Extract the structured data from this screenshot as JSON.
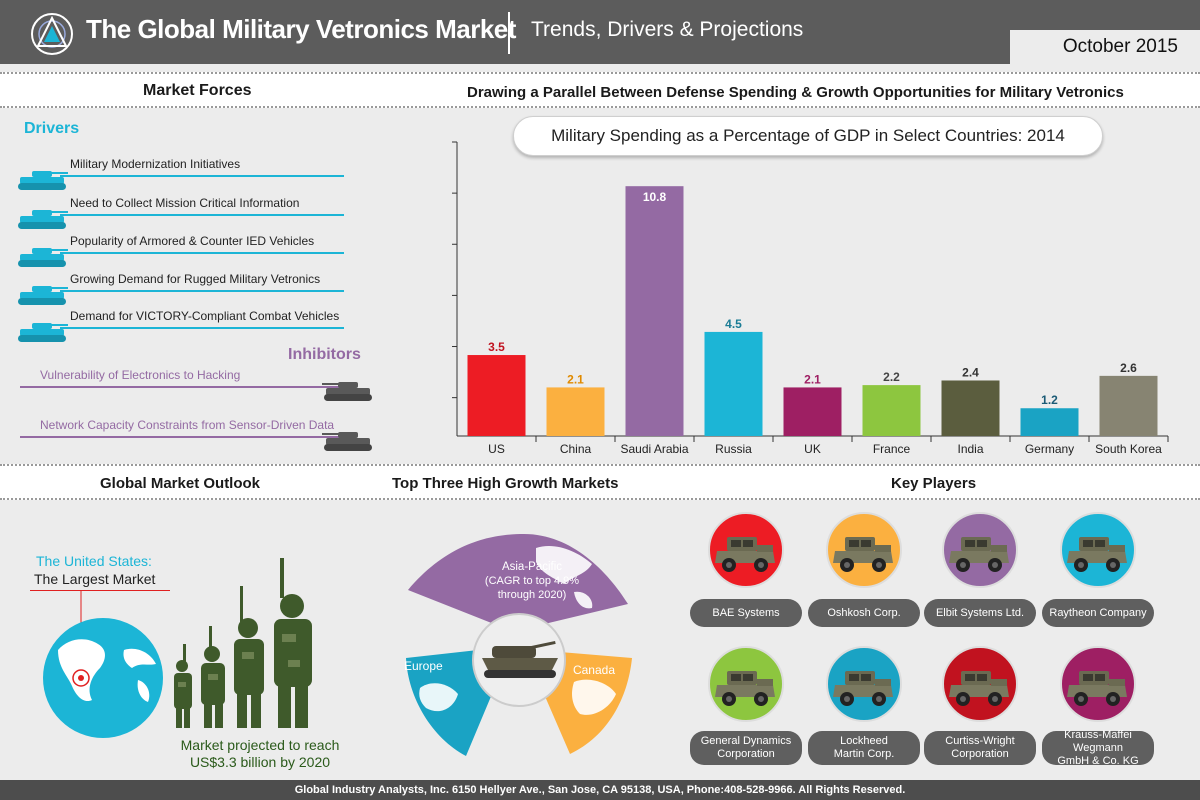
{
  "header": {
    "title": "The Global Military Vetronics Market",
    "subtitle": "Trends, Drivers & Projections",
    "date": "October 2015"
  },
  "sections": {
    "market_forces": "Market Forces",
    "parallel": "Drawing a Parallel Between Defense Spending & Growth Opportunities for Military Vetronics",
    "outlook": "Global Market Outlook",
    "top_three": "Top Three High Growth Markets",
    "key_players": "Key Players"
  },
  "market_forces": {
    "drivers_title": "Drivers",
    "drivers": [
      "Military Modernization Initiatives",
      "Need to Collect Mission Critical Information",
      "Popularity of Armored & Counter IED Vehicles",
      "Growing Demand for Rugged Military Vetronics",
      "Demand for VICTORY-Compliant Combat Vehicles"
    ],
    "inhibitors_title": "Inhibitors",
    "inhibitors": [
      "Vulnerability of Electronics to Hacking",
      "Network Capacity Constraints from Sensor-Driven Data"
    ]
  },
  "chart_data": {
    "type": "bar",
    "title": "Military Spending as a Percentage of GDP in Select Countries: 2014",
    "categories": [
      "US",
      "China",
      "Saudi Arabia",
      "Russia",
      "UK",
      "France",
      "India",
      "Germany",
      "South Korea"
    ],
    "values": [
      3.5,
      2.1,
      10.8,
      4.5,
      2.1,
      2.2,
      2.4,
      1.2,
      2.6
    ],
    "colors": [
      "#ed1c24",
      "#fbb040",
      "#946aa3",
      "#1cb5d6",
      "#9e1f63",
      "#8dc63f",
      "#5b5d3e",
      "#1aa3c4",
      "#878472"
    ],
    "label_colors": [
      "#c1121f",
      "#e08a00",
      "#ffffff",
      "#1a7c95",
      "#9e1f63",
      "#444444",
      "#333333",
      "#1a5a75",
      "#333333"
    ],
    "ylim": [
      0,
      11.5
    ],
    "xlabel": "",
    "ylabel": ""
  },
  "outlook": {
    "us_label_1": "The United States:",
    "us_label_2": "The Largest Market",
    "projection": "Market projected to reach US$3.3 billion by 2020"
  },
  "top_three": {
    "asia": [
      "Asia-Pacific",
      "(CAGR to top 4.9%",
      "through 2020)"
    ],
    "europe": "Europe",
    "canada": "Canada",
    "colors": {
      "asia": "#946aa3",
      "europe": "#1aa3c4",
      "canada": "#fbb040"
    }
  },
  "key_players": {
    "row1": [
      {
        "name": "BAE Systems",
        "color": "#ed1c24"
      },
      {
        "name": "Oshkosh Corp.",
        "color": "#fbb040"
      },
      {
        "name": "Elbit Systems Ltd.",
        "color": "#946aa3"
      },
      {
        "name": "Raytheon Company",
        "color": "#1cb5d6"
      }
    ],
    "row2": [
      {
        "name_1": "General Dynamics",
        "name_2": "Corporation",
        "color": "#8dc63f"
      },
      {
        "name_1": "Lockheed",
        "name_2": "Martin Corp.",
        "color": "#1aa3c4"
      },
      {
        "name_1": "Curtiss-Wright",
        "name_2": "Corporation",
        "color": "#c1121f"
      },
      {
        "name_1": "Krauss-Maffei Wegmann",
        "name_2": "GmbH & Co. KG",
        "color": "#9e1f63"
      }
    ]
  },
  "footer": "Global Industry Analysts, Inc. 6150 Hellyer Ave., San Jose, CA 95138, USA, Phone:408-528-9966. All Rights Reserved."
}
